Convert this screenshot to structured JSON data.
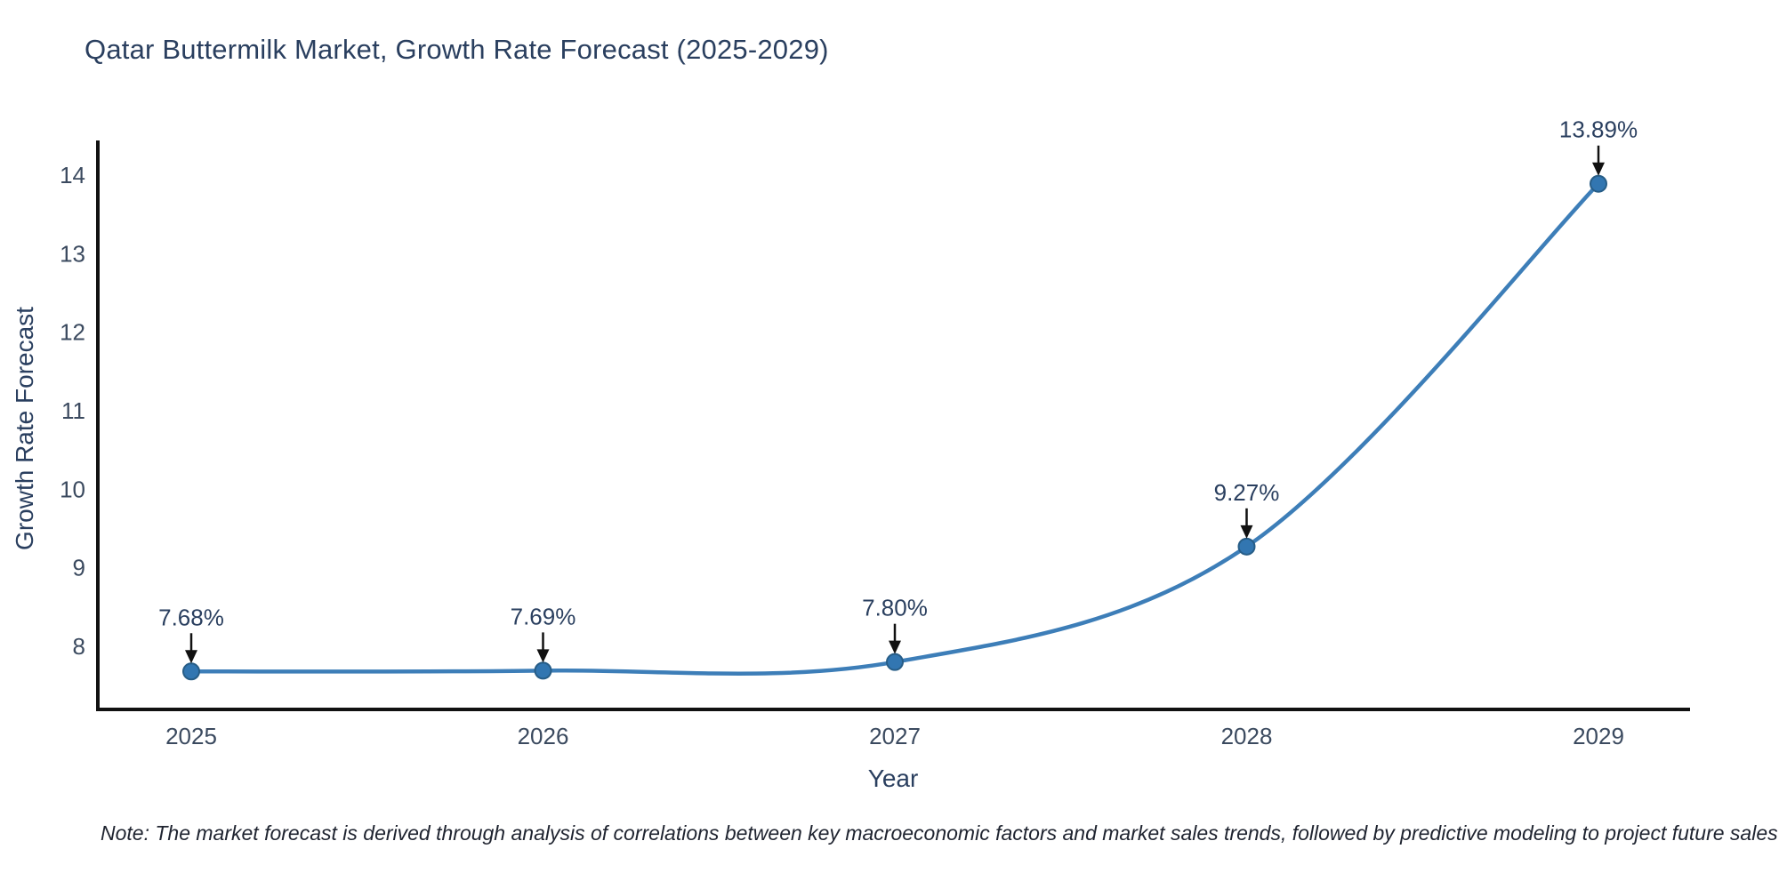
{
  "chart_data": {
    "type": "line",
    "title": "Qatar Buttermilk Market, Growth Rate Forecast (2025-2029)",
    "xlabel": "Year",
    "ylabel": "Growth Rate Forecast",
    "note": "Note: The market forecast is derived through analysis of correlations between key macroeconomic factors and market sales trends, followed by predictive modeling to project future sales",
    "x": [
      2025,
      2026,
      2027,
      2028,
      2029
    ],
    "series": [
      {
        "name": "Growth Rate Forecast",
        "values": [
          7.68,
          7.69,
          7.8,
          9.27,
          13.89
        ]
      }
    ],
    "point_labels": [
      "7.68%",
      "7.69%",
      "7.80%",
      "9.27%",
      "13.89%"
    ],
    "yticks": [
      8,
      9,
      10,
      11,
      12,
      13,
      14
    ],
    "ylim": [
      7.15,
      14.45
    ],
    "xlim": [
      2024.73,
      2029.26
    ],
    "grid": false,
    "legend": "none",
    "line_style": "spline",
    "colors": {
      "line": "#3d7eb8",
      "marker_fill": "#3276b1",
      "marker_edge": "#275d87",
      "axis": "#111111",
      "tick_text": "#3b4a5f",
      "annotation_text": "#2a3f5f",
      "arrow": "#111111"
    }
  }
}
